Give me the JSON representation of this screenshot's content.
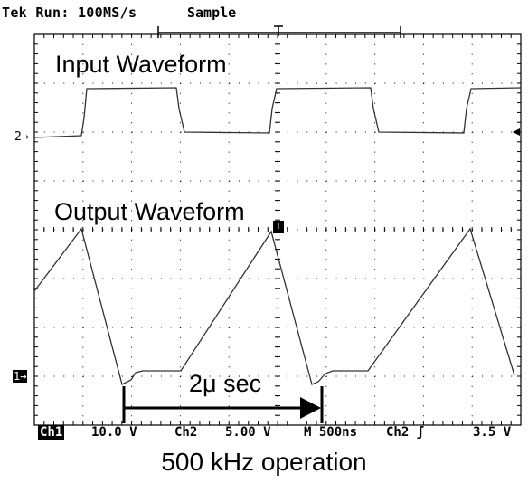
{
  "header": {
    "status": "Tek Run: 100MS/s",
    "acq_mode": "Sample"
  },
  "labels": {
    "input_waveform": "Input Waveform",
    "output_waveform": "Output Waveform",
    "period": "2μ sec"
  },
  "markers": {
    "ch2": "2→",
    "ch1": "1→",
    "trigger": "T"
  },
  "status_bar": {
    "ch1": "Ch1",
    "ch1_scale": "10.0 V",
    "ch2": "Ch2",
    "ch2_scale": "5.00 V",
    "timebase": "M 500ns",
    "trigger_source": "Ch2 ʃ",
    "trigger_level": "3.5 V"
  },
  "caption": "500 kHz operation",
  "icons": [
    "ch2-ground-marker-icon",
    "ch1-ground-marker-icon",
    "trigger-position-icon",
    "trigger-level-arrow-icon",
    "period-arrow-icon"
  ]
}
